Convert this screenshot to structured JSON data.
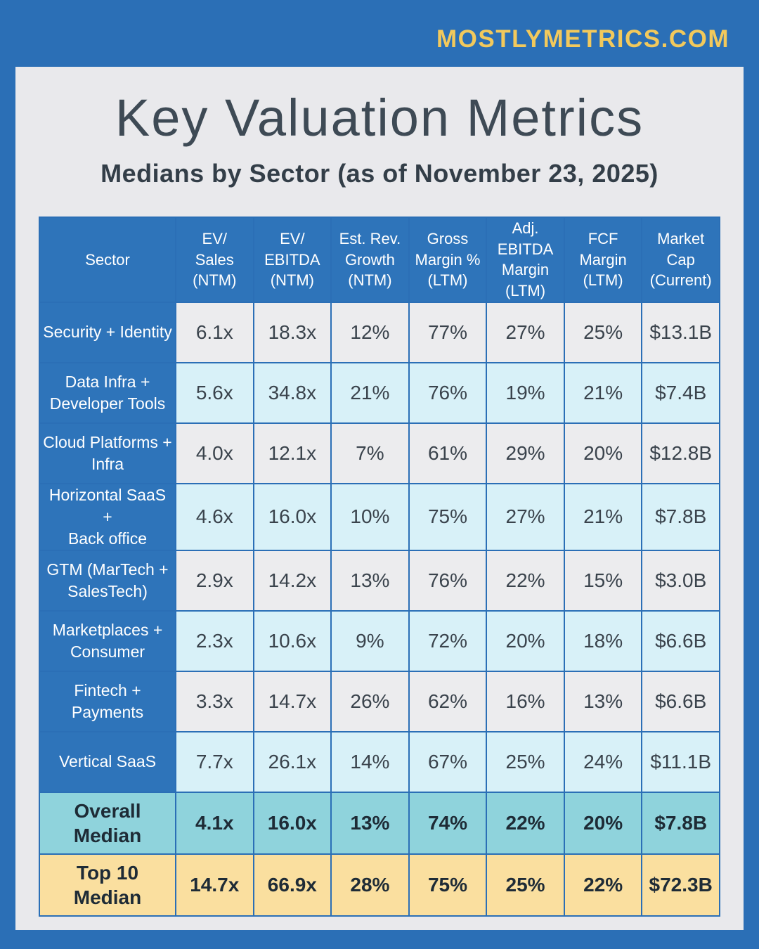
{
  "brand": "MOSTLYMETRICS.COM",
  "title": "Key Valuation Metrics",
  "subtitle": "Medians by Sector (as of November 23, 2025)",
  "colors": {
    "frame_blue": "#2b6fb6",
    "panel_gray": "#e9e9ec",
    "header_blue": "#2e74ba",
    "row_gray": "#ececee",
    "row_cyan": "#d8f1f8",
    "summary_teal": "#8fd3dc",
    "summary_gold": "#fadf9f",
    "brand_gold": "#f2c95c",
    "title_gray": "#3e4a55"
  },
  "chart_data": {
    "type": "table",
    "title": "Key Valuation Metrics",
    "subtitle": "Medians by Sector (as of November 23, 2025)",
    "columns": [
      "Sector",
      "EV/\nSales\n(NTM)",
      "EV/ EBITDA\n(NTM)",
      "Est. Rev.\nGrowth\n(NTM)",
      "Gross\nMargin %\n(LTM)",
      "Adj. EBITDA\nMargin\n(LTM)",
      "FCF Margin\n(LTM)",
      "Market\nCap\n(Current)"
    ],
    "rows": [
      {
        "sector": "Security + Identity",
        "values": [
          "6.1x",
          "18.3x",
          "12%",
          "77%",
          "27%",
          "25%",
          "$13.1B"
        ]
      },
      {
        "sector": "Data Infra +\nDeveloper Tools",
        "values": [
          "5.6x",
          "34.8x",
          "21%",
          "76%",
          "19%",
          "21%",
          "$7.4B"
        ]
      },
      {
        "sector": "Cloud Platforms +\nInfra",
        "values": [
          "4.0x",
          "12.1x",
          "7%",
          "61%",
          "29%",
          "20%",
          "$12.8B"
        ]
      },
      {
        "sector": "Horizontal SaaS +\nBack office",
        "values": [
          "4.6x",
          "16.0x",
          "10%",
          "75%",
          "27%",
          "21%",
          "$7.8B"
        ]
      },
      {
        "sector": "GTM (MarTech +\nSalesTech)",
        "values": [
          "2.9x",
          "14.2x",
          "13%",
          "76%",
          "22%",
          "15%",
          "$3.0B"
        ]
      },
      {
        "sector": "Marketplaces +\nConsumer",
        "values": [
          "2.3x",
          "10.6x",
          "9%",
          "72%",
          "20%",
          "18%",
          "$6.6B"
        ]
      },
      {
        "sector": "Fintech +\nPayments",
        "values": [
          "3.3x",
          "14.7x",
          "26%",
          "62%",
          "16%",
          "13%",
          "$6.6B"
        ]
      },
      {
        "sector": "Vertical SaaS",
        "values": [
          "7.7x",
          "26.1x",
          "14%",
          "67%",
          "25%",
          "24%",
          "$11.1B"
        ]
      }
    ],
    "summary": [
      {
        "sector": "Overall\nMedian",
        "style": "teal",
        "values": [
          "4.1x",
          "16.0x",
          "13%",
          "74%",
          "22%",
          "20%",
          "$7.8B"
        ]
      },
      {
        "sector": "Top 10\nMedian",
        "style": "gold",
        "values": [
          "14.7x",
          "66.9x",
          "28%",
          "75%",
          "25%",
          "22%",
          "$72.3B"
        ]
      }
    ]
  }
}
